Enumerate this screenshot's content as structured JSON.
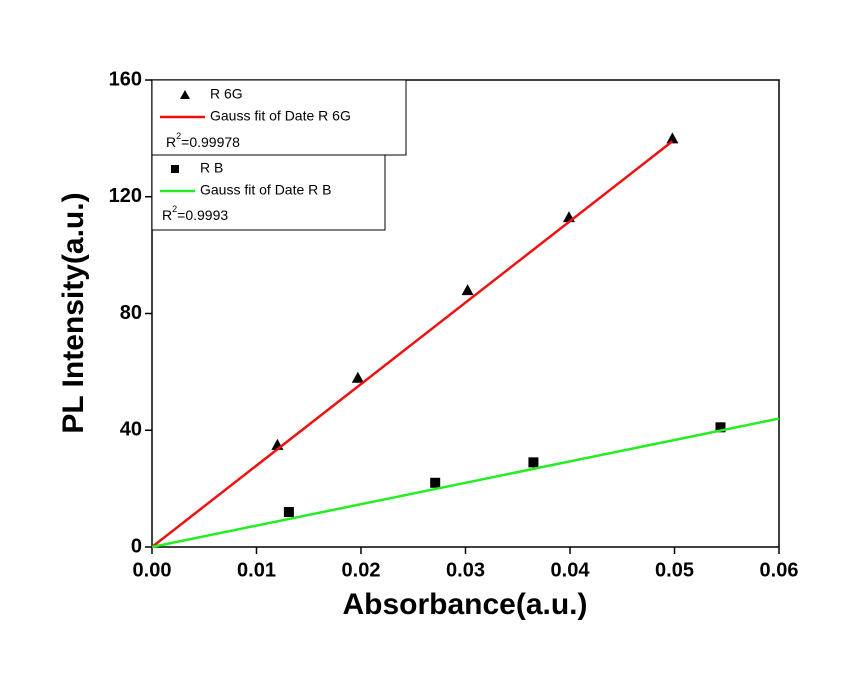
{
  "chart_data": {
    "type": "scatter",
    "x_label": "Absorbance(a.u.)",
    "y_label": "PL Intensity(a.u.)",
    "xlim": [
      0,
      0.06
    ],
    "ylim": [
      0,
      160
    ],
    "xticks": [
      {
        "value": 0,
        "label": "0.00"
      },
      {
        "value": 0.01,
        "label": "0.01"
      },
      {
        "value": 0.02,
        "label": "0.02"
      },
      {
        "value": 0.03,
        "label": "0.03"
      },
      {
        "value": 0.04,
        "label": "0.04"
      },
      {
        "value": 0.05,
        "label": "0.05"
      },
      {
        "value": 0.06,
        "label": "0.06"
      }
    ],
    "yticks": [
      0,
      40,
      80,
      120,
      160
    ],
    "series": [
      {
        "name": "R 6G",
        "marker": "triangle",
        "color": "#000000",
        "x": [
          0.012,
          0.0197,
          0.0302,
          0.0399,
          0.0498
        ],
        "values": [
          35,
          58,
          88,
          113,
          140
        ]
      },
      {
        "name": "Gauss fit of Date R 6G",
        "marker": "line",
        "color": "#ee1111",
        "x": [
          0,
          0.0498
        ],
        "values": [
          0,
          139
        ]
      },
      {
        "name": "R B",
        "marker": "square",
        "color": "#000000",
        "x": [
          0.0131,
          0.0271,
          0.0365,
          0.0544
        ],
        "values": [
          12,
          22,
          29,
          41
        ]
      },
      {
        "name": "Gauss fit of Date R B",
        "marker": "line",
        "color": "#22ee22",
        "x": [
          0,
          0.06
        ],
        "values": [
          0,
          44
        ]
      }
    ],
    "annotations": [
      {
        "base": "R",
        "sup": "2",
        "rest": "=0.99978"
      },
      {
        "base": "R",
        "sup": "2",
        "rest": "=0.9993"
      }
    ]
  }
}
